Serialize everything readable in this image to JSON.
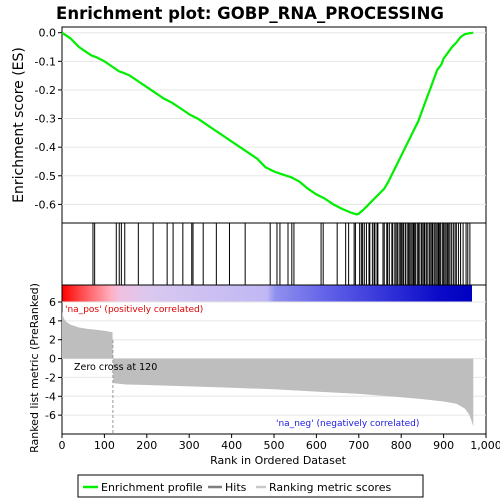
{
  "title": "Enrichment plot: GOBP_RNA_PROCESSING",
  "legend": {
    "items": [
      {
        "label": "Enrichment profile",
        "color": "#00ee00"
      },
      {
        "label": "Hits",
        "color": "#7f7f7f"
      },
      {
        "label": "Ranking metric scores",
        "color": "#c8c8c8"
      }
    ]
  },
  "colors": {
    "es_line": "#00ee00",
    "hit": "#000000",
    "metric_fill": "#bebebe",
    "pos_label": "#dd0000",
    "neg_label": "#1a1ae0",
    "axis": "#000000",
    "grid": "#e6e6e6"
  },
  "chart_data": [
    {
      "type": "line",
      "name": "enrichment-profile",
      "ylabel": "Enrichment score (ES)",
      "xlim": [
        0,
        1000
      ],
      "ylim": [
        -0.665,
        0.02
      ],
      "yticks": [
        0.0,
        -0.1,
        -0.2,
        -0.3,
        -0.4,
        -0.5,
        -0.6
      ],
      "ytick_labels": [
        "0.0",
        "-0.1",
        "-0.2",
        "-0.3",
        "-0.4",
        "-0.5",
        "-0.6"
      ],
      "grid": true,
      "x": [
        0,
        20,
        40,
        60,
        70,
        80,
        100,
        120,
        135,
        145,
        160,
        180,
        200,
        220,
        240,
        260,
        280,
        290,
        300,
        320,
        340,
        360,
        380,
        400,
        420,
        440,
        460,
        480,
        500,
        520,
        530,
        540,
        560,
        580,
        600,
        620,
        640,
        660,
        680,
        695,
        700,
        710,
        720,
        730,
        740,
        750,
        760,
        770,
        780,
        790,
        800,
        810,
        820,
        830,
        840,
        850,
        860,
        870,
        880,
        885,
        890,
        895,
        900,
        910,
        920,
        930,
        935,
        940,
        950,
        960,
        970
      ],
      "y": [
        0.0,
        -0.02,
        -0.05,
        -0.07,
        -0.08,
        -0.085,
        -0.1,
        -0.12,
        -0.135,
        -0.14,
        -0.15,
        -0.17,
        -0.19,
        -0.21,
        -0.23,
        -0.245,
        -0.265,
        -0.275,
        -0.285,
        -0.3,
        -0.32,
        -0.34,
        -0.36,
        -0.38,
        -0.4,
        -0.42,
        -0.44,
        -0.47,
        -0.485,
        -0.495,
        -0.5,
        -0.505,
        -0.52,
        -0.545,
        -0.565,
        -0.58,
        -0.6,
        -0.615,
        -0.628,
        -0.635,
        -0.632,
        -0.62,
        -0.605,
        -0.59,
        -0.575,
        -0.56,
        -0.545,
        -0.52,
        -0.49,
        -0.46,
        -0.43,
        -0.4,
        -0.37,
        -0.34,
        -0.31,
        -0.27,
        -0.23,
        -0.19,
        -0.15,
        -0.13,
        -0.12,
        -0.11,
        -0.09,
        -0.07,
        -0.05,
        -0.035,
        -0.025,
        -0.015,
        -0.005,
        -0.002,
        0.0
      ]
    },
    {
      "type": "scatter",
      "name": "hits",
      "hit_ranks": [
        73,
        77,
        128,
        135,
        140,
        148,
        180,
        215,
        248,
        262,
        285,
        306,
        309,
        333,
        364,
        395,
        432,
        491,
        507,
        514,
        533,
        542,
        547,
        611,
        616,
        649,
        669,
        676,
        689,
        692,
        702,
        706,
        709,
        713,
        718,
        724,
        726,
        732,
        736,
        738,
        743,
        745,
        757,
        760,
        766,
        768,
        772,
        778,
        780,
        785,
        788,
        791,
        795,
        798,
        801,
        804,
        806,
        810,
        814,
        817,
        820,
        823,
        826,
        829,
        831,
        834,
        838,
        841,
        844,
        848,
        851,
        854,
        856,
        860,
        863,
        867,
        870,
        873,
        875,
        879,
        882,
        885,
        888,
        890,
        893,
        897,
        900,
        903,
        906,
        909,
        912,
        915,
        919,
        923,
        927,
        930,
        935,
        940,
        946,
        953,
        957,
        962
      ]
    },
    {
      "type": "area",
      "name": "ranked-list-metric",
      "xlabel": "Rank in Ordered Dataset",
      "ylabel": "Ranked list metric (PreRanked)",
      "xlim": [
        0,
        1000
      ],
      "ylim": [
        -8,
        6
      ],
      "xticks": [
        0,
        100,
        200,
        300,
        400,
        500,
        600,
        700,
        800,
        900,
        1000
      ],
      "xtick_labels": [
        "0",
        "100",
        "200",
        "300",
        "400",
        "500",
        "600",
        "700",
        "800",
        "900",
        "1,000"
      ],
      "yticks": [
        6,
        4,
        2,
        0,
        -2,
        -4,
        -6
      ],
      "ytick_labels": [
        "6",
        "4",
        "2",
        "0",
        "-2",
        "-4",
        "-6"
      ],
      "x": [
        0,
        2,
        5,
        10,
        20,
        40,
        60,
        80,
        100,
        119,
        120,
        121,
        150,
        200,
        300,
        400,
        500,
        600,
        700,
        800,
        850,
        900,
        930,
        950,
        960,
        965,
        970
      ],
      "y": [
        5.0,
        4.6,
        4.2,
        3.9,
        3.6,
        3.3,
        3.15,
        3.05,
        2.95,
        2.8,
        0.0,
        -2.6,
        -2.75,
        -2.8,
        -2.95,
        -3.1,
        -3.25,
        -3.5,
        -3.75,
        -4.1,
        -4.3,
        -4.55,
        -4.8,
        -5.3,
        -5.9,
        -6.5,
        -7.2
      ],
      "annotations": {
        "pos_label": "'na_pos' (positively correlated)",
        "neg_label": "'na_neg' (negatively correlated)",
        "zero_cross": "Zero cross at 120",
        "zero_cross_rank": 120
      }
    }
  ]
}
